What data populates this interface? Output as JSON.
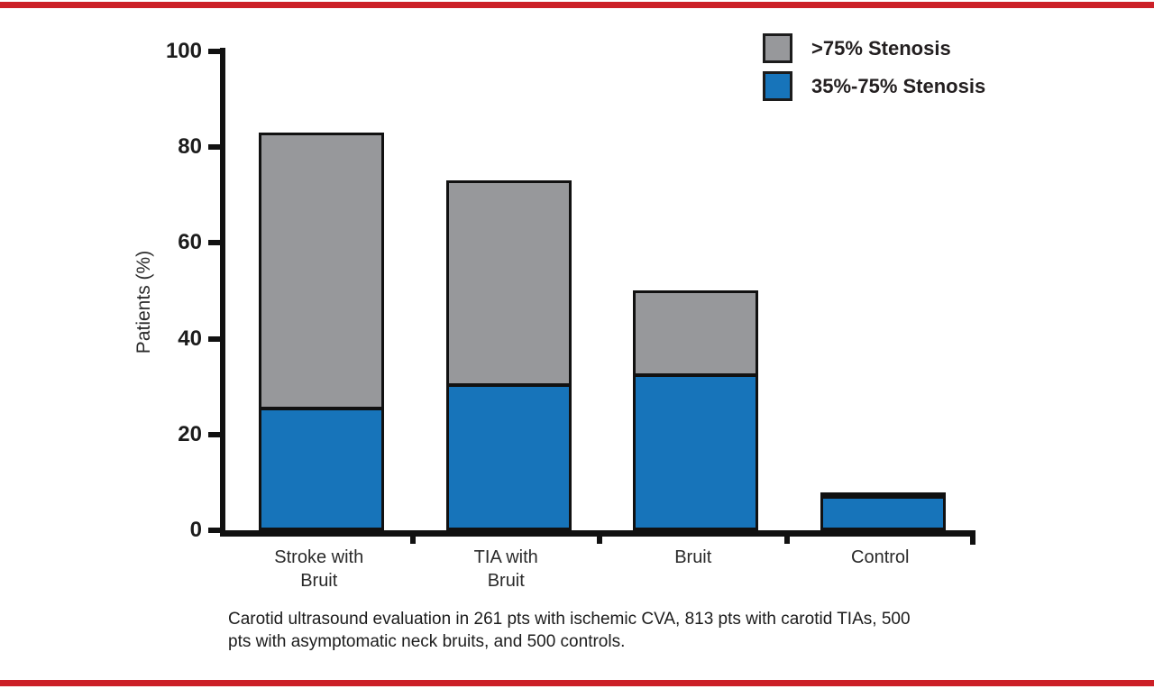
{
  "frame": {
    "accent_color": "#cc2027",
    "background_color": "#ffffff"
  },
  "chart_data": {
    "type": "bar",
    "stacked": true,
    "title": "",
    "ylabel": "Patients (%)",
    "ylim": [
      0,
      100
    ],
    "yticks": [
      0,
      20,
      40,
      60,
      80,
      100
    ],
    "grid": false,
    "legend_position": "top-right",
    "categories": [
      "Stroke with Bruit",
      "TIA with Bruit",
      "Bruit",
      "Control"
    ],
    "category_label_lines": [
      [
        "Stroke with",
        "Bruit"
      ],
      [
        "TIA with",
        "Bruit"
      ],
      [
        "Bruit"
      ],
      [
        "Control"
      ]
    ],
    "series": [
      {
        "name": "35%-75% Stenosis",
        "color": "#1774ba",
        "values": [
          25,
          30,
          32,
          7
        ]
      },
      {
        "name": ">75% Stenosis",
        "color": "#97989b",
        "values": [
          58,
          43,
          18,
          1
        ]
      }
    ],
    "stack_totals": [
      83,
      73,
      50,
      8
    ],
    "bar_outline_color": "#111111"
  },
  "legend": {
    "items": [
      {
        "label": ">75% Stenosis",
        "color": "#97989b"
      },
      {
        "label": "35%-75% Stenosis",
        "color": "#1774ba"
      }
    ]
  },
  "caption": {
    "lines": [
      "Carotid ultrasound evaluation in 261 pts with ischemic CVA, 813 pts with carotid TIAs, 500",
      "pts with asymptomatic neck bruits, and 500 controls."
    ]
  }
}
